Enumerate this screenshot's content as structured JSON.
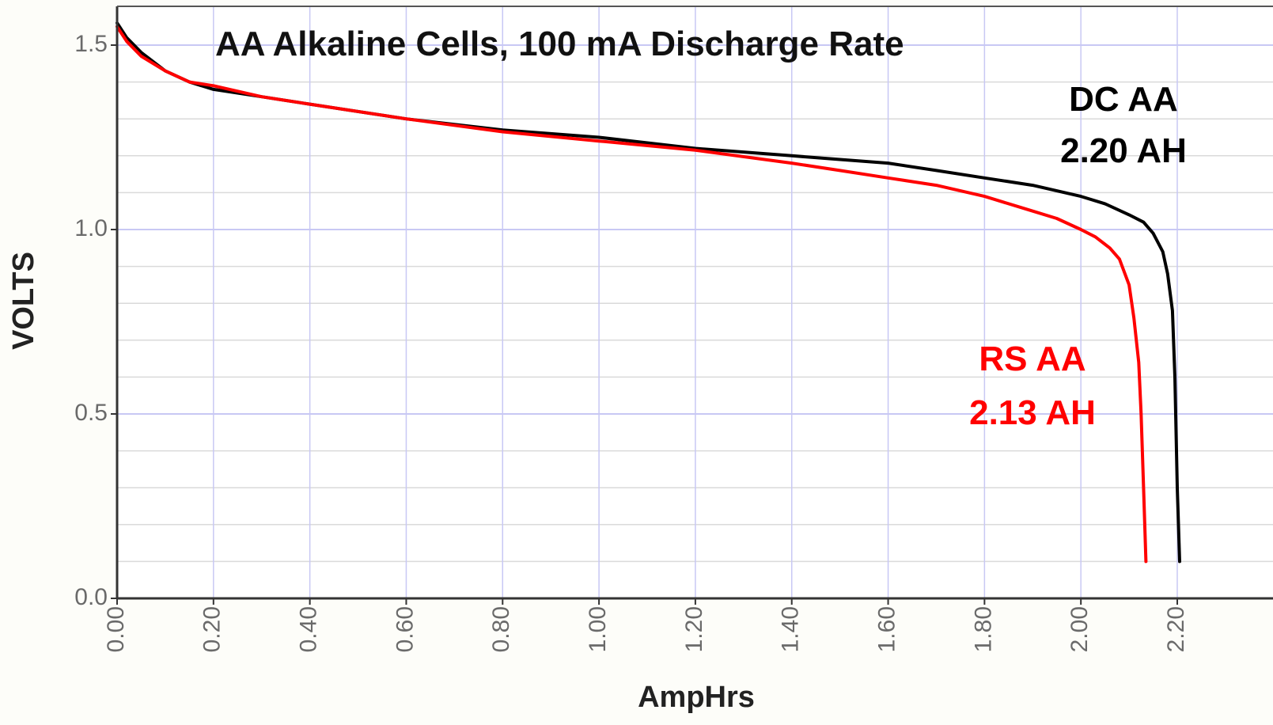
{
  "chart_data": {
    "type": "line",
    "title": "AA Alkaline Cells, 100 mA Discharge Rate",
    "xlabel": "AmpHrs",
    "ylabel": "VOLTS",
    "xlim": [
      0,
      2.5
    ],
    "ylim": [
      0,
      1.6
    ],
    "x_ticks": [
      "0.00",
      "0.20",
      "0.40",
      "0.60",
      "0.80",
      "1.00",
      "1.20",
      "1.40",
      "1.60",
      "1.80",
      "2.00",
      "2.20"
    ],
    "y_ticks": [
      "0.0",
      "0.5",
      "1.0",
      "1.5"
    ],
    "grid": true,
    "series": [
      {
        "name": "DC AA",
        "capacity_label": "2.20 AH",
        "color": "#000000",
        "points": [
          [
            0.0,
            1.56
          ],
          [
            0.02,
            1.52
          ],
          [
            0.05,
            1.48
          ],
          [
            0.1,
            1.43
          ],
          [
            0.15,
            1.4
          ],
          [
            0.2,
            1.38
          ],
          [
            0.3,
            1.36
          ],
          [
            0.4,
            1.34
          ],
          [
            0.6,
            1.3
          ],
          [
            0.8,
            1.27
          ],
          [
            1.0,
            1.25
          ],
          [
            1.2,
            1.22
          ],
          [
            1.4,
            1.2
          ],
          [
            1.5,
            1.19
          ],
          [
            1.6,
            1.18
          ],
          [
            1.7,
            1.16
          ],
          [
            1.8,
            1.14
          ],
          [
            1.9,
            1.12
          ],
          [
            2.0,
            1.09
          ],
          [
            2.05,
            1.07
          ],
          [
            2.1,
            1.04
          ],
          [
            2.13,
            1.02
          ],
          [
            2.15,
            0.99
          ],
          [
            2.17,
            0.94
          ],
          [
            2.18,
            0.88
          ],
          [
            2.19,
            0.78
          ],
          [
            2.195,
            0.6
          ],
          [
            2.2,
            0.3
          ],
          [
            2.205,
            0.1
          ]
        ]
      },
      {
        "name": "RS AA",
        "capacity_label": "2.13 AH",
        "color": "#ff0000",
        "points": [
          [
            0.0,
            1.55
          ],
          [
            0.02,
            1.51
          ],
          [
            0.05,
            1.47
          ],
          [
            0.1,
            1.43
          ],
          [
            0.15,
            1.4
          ],
          [
            0.2,
            1.39
          ],
          [
            0.3,
            1.36
          ],
          [
            0.4,
            1.34
          ],
          [
            0.6,
            1.3
          ],
          [
            0.8,
            1.265
          ],
          [
            1.0,
            1.24
          ],
          [
            1.2,
            1.215
          ],
          [
            1.4,
            1.18
          ],
          [
            1.5,
            1.16
          ],
          [
            1.6,
            1.14
          ],
          [
            1.7,
            1.12
          ],
          [
            1.8,
            1.09
          ],
          [
            1.9,
            1.05
          ],
          [
            1.95,
            1.03
          ],
          [
            2.0,
            1.0
          ],
          [
            2.03,
            0.98
          ],
          [
            2.06,
            0.95
          ],
          [
            2.08,
            0.92
          ],
          [
            2.1,
            0.85
          ],
          [
            2.11,
            0.76
          ],
          [
            2.12,
            0.64
          ],
          [
            2.125,
            0.5
          ],
          [
            2.13,
            0.3
          ],
          [
            2.135,
            0.1
          ]
        ]
      }
    ]
  },
  "colors": {
    "plot_background": "#ffffff",
    "page_background": "#fdfdf9",
    "major_grid": "#c8c8f4",
    "minor_grid": "#dadada",
    "axis": "#333333"
  }
}
